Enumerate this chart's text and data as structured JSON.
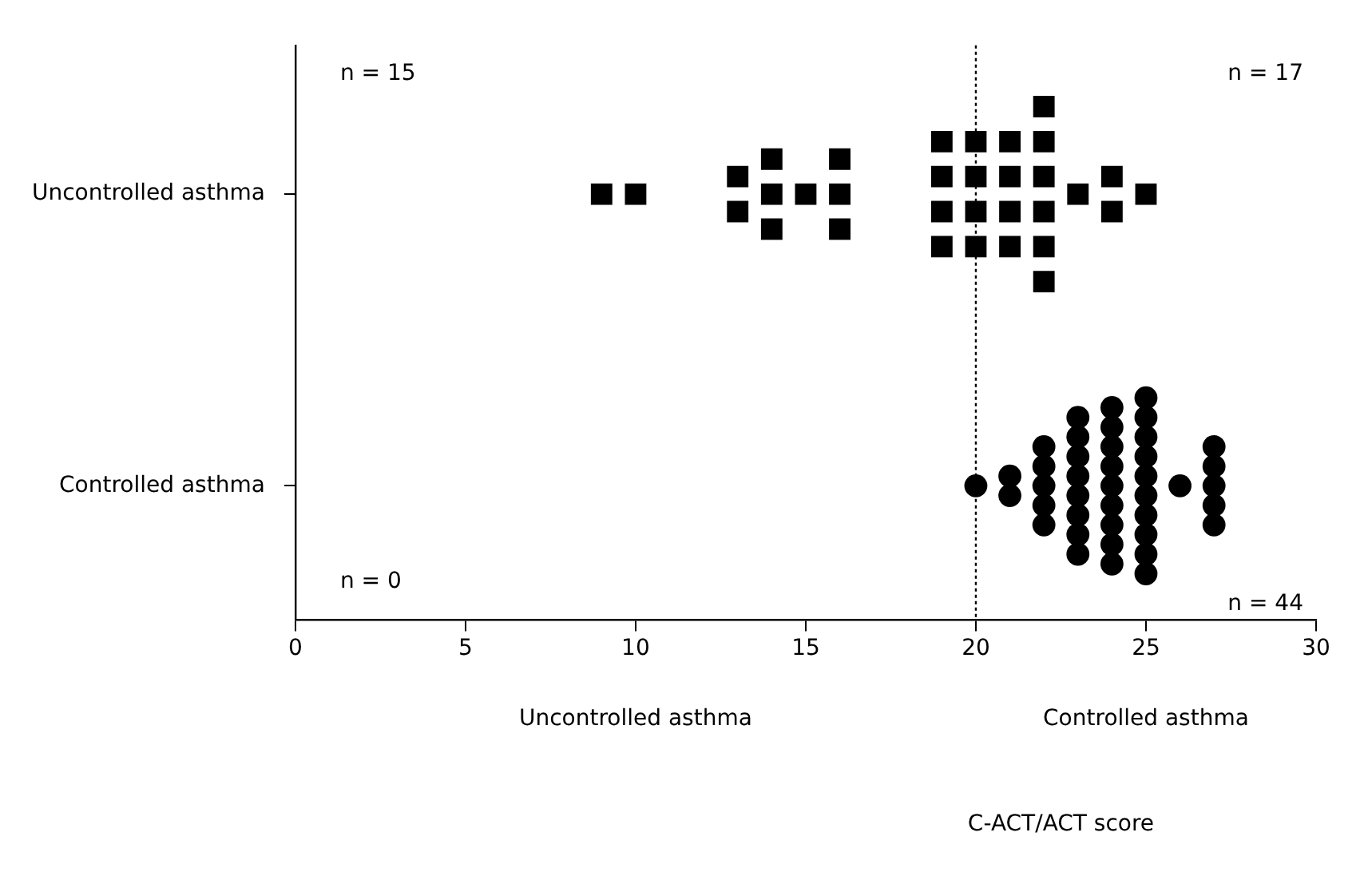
{
  "chart_data": {
    "type": "scatter",
    "orientation": "horizontal",
    "categories": [
      "Uncontrolled asthma",
      "Controlled asthma"
    ],
    "series": [
      {
        "color": "#000000",
        "marker": "square",
        "x": [
          "Uncontrolled asthma",
          "Uncontrolled asthma",
          "Uncontrolled asthma",
          "Uncontrolled asthma",
          "Uncontrolled asthma",
          "Uncontrolled asthma",
          "Uncontrolled asthma",
          "Uncontrolled asthma",
          "Uncontrolled asthma",
          "Uncontrolled asthma",
          "Uncontrolled asthma",
          "Uncontrolled asthma",
          "Uncontrolled asthma",
          "Uncontrolled asthma",
          "Uncontrolled asthma",
          "Uncontrolled asthma",
          "Uncontrolled asthma",
          "Uncontrolled asthma",
          "Uncontrolled asthma",
          "Uncontrolled asthma",
          "Uncontrolled asthma",
          "Uncontrolled asthma",
          "Uncontrolled asthma",
          "Uncontrolled asthma",
          "Uncontrolled asthma",
          "Uncontrolled asthma",
          "Uncontrolled asthma",
          "Uncontrolled asthma",
          "Uncontrolled asthma",
          "Uncontrolled asthma",
          "Uncontrolled asthma",
          "Uncontrolled asthma",
          "Uncontrolled asthma"
        ],
        "values": [
          9,
          10,
          13,
          13,
          14,
          14,
          14,
          15,
          16,
          16,
          16,
          19,
          19,
          19,
          19,
          20,
          20,
          20,
          20,
          21,
          21,
          21,
          21,
          22,
          22,
          22,
          22,
          22,
          22,
          23,
          24,
          24,
          25
        ]
      },
      {
        "color": "#000000",
        "marker": "circle",
        "x": [
          "Controlled asthma",
          "Controlled asthma",
          "Controlled asthma",
          "Controlled asthma",
          "Controlled asthma",
          "Controlled asthma",
          "Controlled asthma",
          "Controlled asthma",
          "Controlled asthma",
          "Controlled asthma",
          "Controlled asthma",
          "Controlled asthma",
          "Controlled asthma",
          "Controlled asthma",
          "Controlled asthma",
          "Controlled asthma",
          "Controlled asthma",
          "Controlled asthma",
          "Controlled asthma",
          "Controlled asthma",
          "Controlled asthma",
          "Controlled asthma",
          "Controlled asthma",
          "Controlled asthma",
          "Controlled asthma",
          "Controlled asthma",
          "Controlled asthma",
          "Controlled asthma",
          "Controlled asthma",
          "Controlled asthma",
          "Controlled asthma",
          "Controlled asthma",
          "Controlled asthma",
          "Controlled asthma",
          "Controlled asthma",
          "Controlled asthma",
          "Controlled asthma",
          "Controlled asthma",
          "Controlled asthma",
          "Controlled asthma",
          "Controlled asthma"
        ],
        "values": [
          20,
          21,
          21,
          22,
          22,
          22,
          22,
          22,
          23,
          23,
          23,
          23,
          23,
          23,
          23,
          23,
          24,
          24,
          24,
          24,
          24,
          24,
          24,
          24,
          24,
          25,
          25,
          25,
          25,
          25,
          25,
          25,
          25,
          25,
          25,
          26,
          27,
          27,
          27,
          27,
          27
        ]
      }
    ],
    "xlim": [
      0,
      30
    ],
    "xticks": [
      0,
      5,
      10,
      15,
      20,
      25,
      30
    ],
    "ref_lines": [
      {
        "axis": "x",
        "value": 20,
        "line_style": "dotted",
        "color": "#000000"
      }
    ],
    "grid": false,
    "legend": false,
    "annotations": [
      "n = 15",
      "n = 17",
      "n = 0",
      "n = 44",
      "Uncontrolled asthma",
      "Controlled asthma",
      "C-ACT/ACT score"
    ]
  }
}
